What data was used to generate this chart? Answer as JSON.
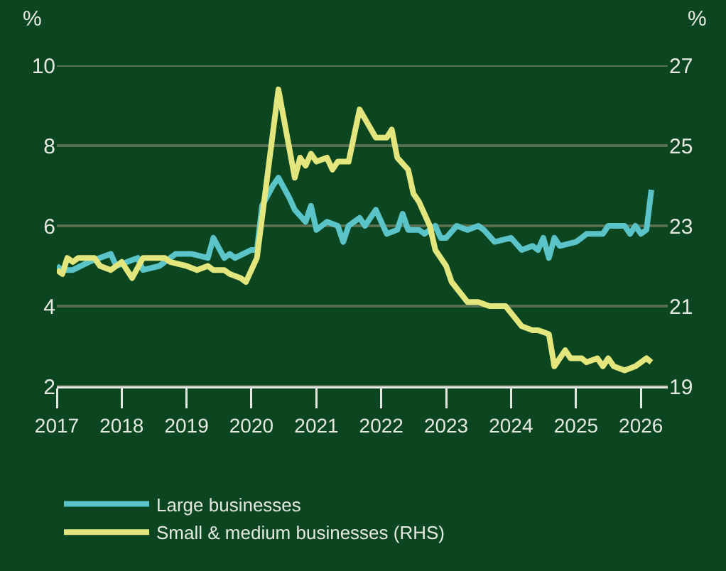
{
  "chart_data": {
    "type": "line",
    "ylabel": "%",
    "y2label": "%",
    "xlim": [
      "2017-01-01",
      "2026-06-01"
    ],
    "xticks": [
      "2017",
      "2018",
      "2019",
      "2020",
      "2021",
      "2022",
      "2023",
      "2024",
      "2025",
      "2026"
    ],
    "ylim": [
      2,
      10
    ],
    "yticks": [
      2,
      4,
      6,
      8,
      10
    ],
    "y2lim": [
      19,
      27
    ],
    "y2ticks": [
      19,
      21,
      23,
      25,
      27
    ],
    "grid": "y",
    "legend": "bottom",
    "marker": "none",
    "line_style": "solid",
    "series": [
      {
        "name": "Large businesses",
        "color": "#5bc4c8",
        "x": [
          "2017-01",
          "2017-02",
          "2017-04",
          "2017-07",
          "2017-11",
          "2017-12",
          "2018-04",
          "2018-05",
          "2018-08",
          "2018-11",
          "2019-02",
          "2019-05",
          "2019-06",
          "2019-08",
          "2019-09",
          "2019-10",
          "2020-01",
          "2020-02",
          "2020-03",
          "2020-05",
          "2020-06",
          "2020-08",
          "2020-09",
          "2020-11",
          "2020-12",
          "2021-01",
          "2021-03",
          "2021-05",
          "2021-06",
          "2021-07",
          "2021-09",
          "2021-10",
          "2021-12",
          "2022-02",
          "2022-04",
          "2022-05",
          "2022-06",
          "2022-08",
          "2022-09",
          "2022-11",
          "2022-12",
          "2023-01",
          "2023-03",
          "2023-05",
          "2023-07",
          "2023-08",
          "2023-10",
          "2024-01",
          "2024-03",
          "2024-05",
          "2024-06",
          "2024-07",
          "2024-08",
          "2024-09",
          "2024-10",
          "2025-01",
          "2025-02",
          "2025-03",
          "2025-05",
          "2025-06",
          "2025-07",
          "2025-10",
          "2025-11",
          "2025-12",
          "2026-01",
          "2026-02",
          "2026-03"
        ],
        "values": [
          5.0,
          4.9,
          4.9,
          5.1,
          5.3,
          5.0,
          5.2,
          4.9,
          5.0,
          5.3,
          5.3,
          5.2,
          5.7,
          5.2,
          5.3,
          5.2,
          5.4,
          5.4,
          6.5,
          7.0,
          7.2,
          6.7,
          6.4,
          6.1,
          6.5,
          5.9,
          6.1,
          6.0,
          5.6,
          6.0,
          6.2,
          6.0,
          6.4,
          5.8,
          5.9,
          6.3,
          5.9,
          5.9,
          5.8,
          6.0,
          5.7,
          5.7,
          6.0,
          5.9,
          6.0,
          5.9,
          5.6,
          5.7,
          5.4,
          5.5,
          5.4,
          5.7,
          5.2,
          5.7,
          5.5,
          5.6,
          5.7,
          5.8,
          5.8,
          5.8,
          6.0,
          6.0,
          5.8,
          6.0,
          5.8,
          5.9,
          6.9
        ]
      },
      {
        "name": "Small & medium businesses (RHS)",
        "color": "#e2e67c",
        "axis": "y2",
        "x": [
          "2017-01",
          "2017-02",
          "2017-03",
          "2017-04",
          "2017-05",
          "2017-08",
          "2017-09",
          "2017-11",
          "2018-01",
          "2018-03",
          "2018-05",
          "2018-07",
          "2018-09",
          "2018-10",
          "2019-01",
          "2019-03",
          "2019-05",
          "2019-06",
          "2019-08",
          "2019-09",
          "2019-11",
          "2019-12",
          "2020-02",
          "2020-06",
          "2020-09",
          "2020-10",
          "2020-11",
          "2020-12",
          "2021-01",
          "2021-03",
          "2021-04",
          "2021-05",
          "2021-07",
          "2021-09",
          "2021-12",
          "2022-02",
          "2022-03",
          "2022-04",
          "2022-06",
          "2022-07",
          "2022-08",
          "2022-10",
          "2022-11",
          "2023-01",
          "2023-02",
          "2023-05",
          "2023-07",
          "2023-09",
          "2023-12",
          "2024-03",
          "2024-05",
          "2024-06",
          "2024-08",
          "2024-09",
          "2024-11",
          "2024-12",
          "2025-02",
          "2025-03",
          "2025-05",
          "2025-06",
          "2025-07",
          "2025-08",
          "2025-10",
          "2025-12",
          "2026-02",
          "2026-03"
        ],
        "values": [
          21.9,
          21.8,
          22.2,
          22.1,
          22.2,
          22.2,
          22.0,
          21.9,
          22.1,
          21.7,
          22.2,
          22.2,
          22.2,
          22.1,
          22.0,
          21.9,
          22.0,
          21.9,
          21.9,
          21.8,
          21.7,
          21.6,
          22.2,
          26.4,
          24.2,
          24.7,
          24.5,
          24.8,
          24.6,
          24.7,
          24.4,
          24.6,
          24.6,
          25.9,
          25.2,
          25.2,
          25.4,
          24.7,
          24.4,
          23.8,
          23.6,
          23.0,
          22.4,
          22.0,
          21.6,
          21.1,
          21.1,
          21.0,
          21.0,
          20.5,
          20.4,
          20.4,
          20.3,
          19.5,
          19.9,
          19.7,
          19.7,
          19.6,
          19.7,
          19.5,
          19.7,
          19.5,
          19.4,
          19.5,
          19.7,
          19.6
        ]
      }
    ]
  }
}
